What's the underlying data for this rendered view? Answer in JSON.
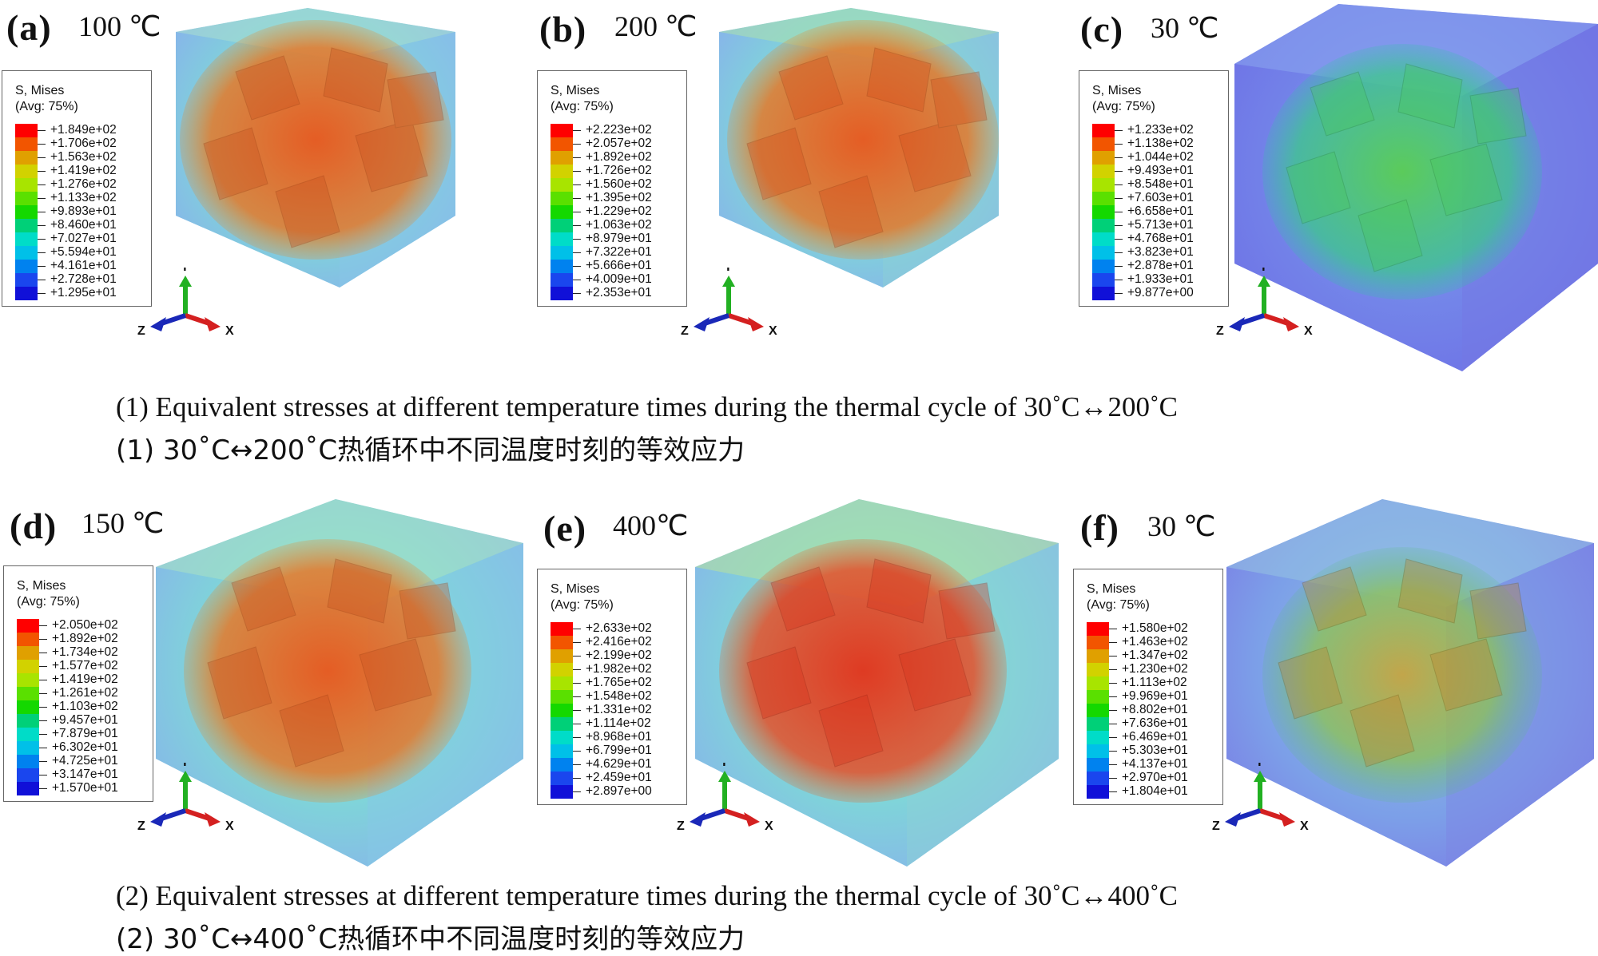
{
  "legend_title_line1": "S, Mises",
  "legend_title_line2": "(Avg: 75%)",
  "axes": {
    "y": "Y",
    "z": "Z",
    "x": "X"
  },
  "colormap": [
    "#ff0000",
    "#f25500",
    "#e0a000",
    "#d2d200",
    "#a8e400",
    "#5ae000",
    "#14d800",
    "#00d078",
    "#00dcc8",
    "#00c0e8",
    "#0082ef",
    "#1a46ee",
    "#1010d8"
  ],
  "panels": [
    {
      "id": "a",
      "label": "(a)",
      "temp": "100 ℃",
      "legend": [
        "+1.849e+02",
        "+1.706e+02",
        "+1.563e+02",
        "+1.419e+02",
        "+1.276e+02",
        "+1.133e+02",
        "+9.893e+01",
        "+8.460e+01",
        "+7.027e+01",
        "+5.594e+01",
        "+4.161e+01",
        "+2.728e+01",
        "+1.295e+01"
      ]
    },
    {
      "id": "b",
      "label": "(b)",
      "temp": "200 ℃",
      "legend": [
        "+2.223e+02",
        "+2.057e+02",
        "+1.892e+02",
        "+1.726e+02",
        "+1.560e+02",
        "+1.395e+02",
        "+1.229e+02",
        "+1.063e+02",
        "+8.979e+01",
        "+7.322e+01",
        "+5.666e+01",
        "+4.009e+01",
        "+2.353e+01"
      ]
    },
    {
      "id": "c",
      "label": "(c)",
      "temp": "30 ℃",
      "legend": [
        "+1.233e+02",
        "+1.138e+02",
        "+1.044e+02",
        "+9.493e+01",
        "+8.548e+01",
        "+7.603e+01",
        "+6.658e+01",
        "+5.713e+01",
        "+4.768e+01",
        "+3.823e+01",
        "+2.878e+01",
        "+1.933e+01",
        "+9.877e+00"
      ]
    },
    {
      "id": "d",
      "label": "(d)",
      "temp": "150 ℃",
      "legend": [
        "+2.050e+02",
        "+1.892e+02",
        "+1.734e+02",
        "+1.577e+02",
        "+1.419e+02",
        "+1.261e+02",
        "+1.103e+02",
        "+9.457e+01",
        "+7.879e+01",
        "+6.302e+01",
        "+4.725e+01",
        "+3.147e+01",
        "+1.570e+01"
      ]
    },
    {
      "id": "e",
      "label": "(e)",
      "temp": "400℃",
      "legend": [
        "+2.633e+02",
        "+2.416e+02",
        "+2.199e+02",
        "+1.982e+02",
        "+1.765e+02",
        "+1.548e+02",
        "+1.331e+02",
        "+1.114e+02",
        "+8.968e+01",
        "+6.799e+01",
        "+4.629e+01",
        "+2.459e+01",
        "+2.897e+00"
      ]
    },
    {
      "id": "f",
      "label": "(f)",
      "temp": "30 ℃",
      "legend": [
        "+1.580e+02",
        "+1.463e+02",
        "+1.347e+02",
        "+1.230e+02",
        "+1.113e+02",
        "+9.969e+01",
        "+8.802e+01",
        "+7.636e+01",
        "+6.469e+01",
        "+5.303e+01",
        "+4.137e+01",
        "+2.970e+01",
        "+1.804e+01"
      ]
    }
  ],
  "captions": {
    "row1_en": "(1) Equivalent stresses at different temperature times during the thermal cycle of 30˚C↔200˚C",
    "row1_cn": "(1) 30˚C↔200˚C热循环中不同温度时刻的等效应力",
    "row2_en": "(2) Equivalent stresses at different temperature times during the thermal cycle of 30˚C↔400˚C",
    "row2_cn": "(2) 30˚C↔400˚C热循环中不同温度时刻的等效应力"
  }
}
